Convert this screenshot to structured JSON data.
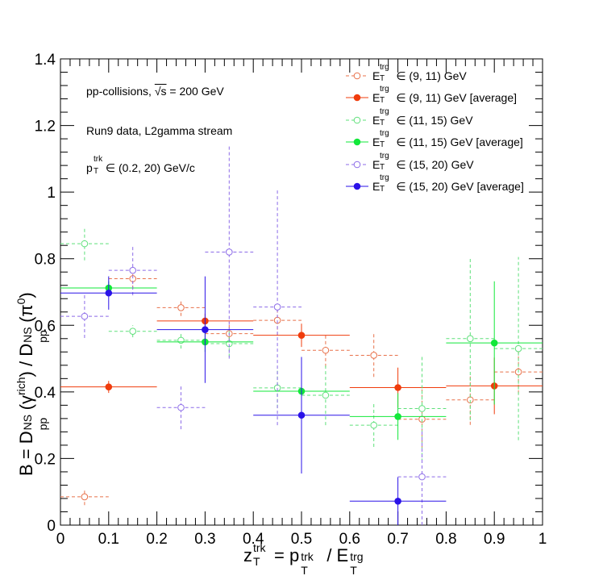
{
  "chart_data": {
    "type": "scatter",
    "xlabel": "z_T^trk = p_T^trk / E_T^trg",
    "ylabel": "B = D_pp^NS(γ^rich) / D_pp^NS(π^0)",
    "xlim": [
      0,
      1
    ],
    "ylim": [
      0,
      1.4
    ],
    "x_ticks": [
      "0",
      "0.1",
      "0.2",
      "0.3",
      "0.4",
      "0.5",
      "0.6",
      "0.7",
      "0.8",
      "0.9",
      "1"
    ],
    "y_ticks": [
      "0",
      "0.2",
      "0.4",
      "0.6",
      "0.8",
      "1",
      "1.2",
      "1.4"
    ],
    "grid": false,
    "legend_position": "top-right",
    "annotations": {
      "line1_prefix": "pp-collisions, ",
      "line1_sqrt": "√s",
      "line1_suffix": " = 200 GeV",
      "line2": "Run9 data, L2gamma stream",
      "line3_p": "p",
      "line3_sup": "trk",
      "line3_sub": "T",
      "line3_rest": " ∈ (0.2, 20) GeV/c"
    },
    "series": [
      {
        "name": "E_T^trg ∈ (9, 11) GeV",
        "legend_sup": "trg",
        "legend_rest": "∈ (9, 11) GeV",
        "color": "#e8714a",
        "style": "open-dashed",
        "points": [
          {
            "x": 0.05,
            "xerr": 0.05,
            "y": 0.085,
            "yerr": 0.025
          },
          {
            "x": 0.15,
            "xerr": 0.05,
            "y": 0.74,
            "yerr": 0.03
          },
          {
            "x": 0.25,
            "xerr": 0.05,
            "y": 0.653,
            "yerr": 0.025
          },
          {
            "x": 0.35,
            "xerr": 0.05,
            "y": 0.575,
            "yerr": 0.035
          },
          {
            "x": 0.45,
            "xerr": 0.05,
            "y": 0.615,
            "yerr": 0.045
          },
          {
            "x": 0.55,
            "xerr": 0.05,
            "y": 0.525,
            "yerr": 0.05
          },
          {
            "x": 0.65,
            "xerr": 0.05,
            "y": 0.51,
            "yerr": 0.065
          },
          {
            "x": 0.75,
            "xerr": 0.05,
            "y": 0.318,
            "yerr": 0.09
          },
          {
            "x": 0.85,
            "xerr": 0.05,
            "y": 0.376,
            "yerr": 0.075
          },
          {
            "x": 0.95,
            "xerr": 0.05,
            "y": 0.46,
            "yerr": 0.065
          }
        ]
      },
      {
        "name": "E_T^trg ∈ (9, 11) GeV [average]",
        "legend_sup": "trg",
        "legend_rest": "∈ (9, 11) GeV [average]",
        "color": "#f03c0c",
        "style": "filled-solid",
        "points": [
          {
            "x": 0.1,
            "xerr": 0.1,
            "y": 0.415,
            "yerr": 0.018
          },
          {
            "x": 0.3,
            "xerr": 0.1,
            "y": 0.613,
            "yerr": 0.022
          },
          {
            "x": 0.5,
            "xerr": 0.1,
            "y": 0.57,
            "yerr": 0.035
          },
          {
            "x": 0.7,
            "xerr": 0.1,
            "y": 0.413,
            "yerr": 0.06
          },
          {
            "x": 0.9,
            "xerr": 0.1,
            "y": 0.418,
            "yerr": 0.085
          }
        ]
      },
      {
        "name": "E_T^trg ∈ (11, 15) GeV",
        "legend_sup": "trg",
        "legend_rest": "∈ (11, 15) GeV",
        "color": "#5ee07a",
        "style": "open-dashed",
        "points": [
          {
            "x": 0.05,
            "xerr": 0.05,
            "y": 0.845,
            "yerr": 0.05
          },
          {
            "x": 0.15,
            "xerr": 0.05,
            "y": 0.582,
            "yerr": 0.018
          },
          {
            "x": 0.25,
            "xerr": 0.05,
            "y": 0.555,
            "yerr": 0.025
          },
          {
            "x": 0.35,
            "xerr": 0.05,
            "y": 0.545,
            "yerr": 0.04
          },
          {
            "x": 0.45,
            "xerr": 0.05,
            "y": 0.412,
            "yerr": 0.06
          },
          {
            "x": 0.55,
            "xerr": 0.05,
            "y": 0.39,
            "yerr": 0.09
          },
          {
            "x": 0.65,
            "xerr": 0.05,
            "y": 0.3,
            "yerr": 0.065
          },
          {
            "x": 0.75,
            "xerr": 0.05,
            "y": 0.35,
            "yerr": 0.16
          },
          {
            "x": 0.85,
            "xerr": 0.05,
            "y": 0.56,
            "yerr": 0.245
          },
          {
            "x": 0.95,
            "xerr": 0.05,
            "y": 0.53,
            "yerr": 0.275
          }
        ]
      },
      {
        "name": "E_T^trg ∈ (11, 15) GeV [average]",
        "legend_sup": "trg",
        "legend_rest": "∈ (11, 15) GeV [average]",
        "color": "#12e83a",
        "style": "filled-solid",
        "points": [
          {
            "x": 0.1,
            "xerr": 0.1,
            "y": 0.712,
            "yerr": 0.02
          },
          {
            "x": 0.3,
            "xerr": 0.1,
            "y": 0.55,
            "yerr": 0.03
          },
          {
            "x": 0.5,
            "xerr": 0.1,
            "y": 0.402,
            "yerr": 0.05
          },
          {
            "x": 0.7,
            "xerr": 0.1,
            "y": 0.326,
            "yerr": 0.07
          },
          {
            "x": 0.9,
            "xerr": 0.1,
            "y": 0.547,
            "yerr": 0.185
          }
        ]
      },
      {
        "name": "E_T^trg ∈ (15, 20) GeV",
        "legend_sup": "trg",
        "legend_rest": "∈ (15, 20) GeV",
        "color": "#8c6be8",
        "style": "open-dashed",
        "points": [
          {
            "x": 0.05,
            "xerr": 0.05,
            "y": 0.627,
            "yerr": 0.065
          },
          {
            "x": 0.15,
            "xerr": 0.05,
            "y": 0.765,
            "yerr": 0.075
          },
          {
            "x": 0.25,
            "xerr": 0.05,
            "y": 0.353,
            "yerr": 0.065
          },
          {
            "x": 0.35,
            "xerr": 0.05,
            "y": 0.82,
            "yerr": 0.32
          },
          {
            "x": 0.45,
            "xerr": 0.05,
            "y": 0.655,
            "yerr": 0.355
          },
          {
            "x": 0.75,
            "xerr": 0.05,
            "y": 0.145,
            "yerr": 0.145
          }
        ]
      },
      {
        "name": "E_T^trg ∈ (15, 20) GeV [average]",
        "legend_sup": "trg",
        "legend_rest": "∈ (15, 20) GeV [average]",
        "color": "#2a12e8",
        "style": "filled-solid",
        "points": [
          {
            "x": 0.1,
            "xerr": 0.1,
            "y": 0.697,
            "yerr": 0.05
          },
          {
            "x": 0.3,
            "xerr": 0.1,
            "y": 0.587,
            "yerr": 0.16
          },
          {
            "x": 0.5,
            "xerr": 0.1,
            "y": 0.33,
            "yerr": 0.175
          },
          {
            "x": 0.7,
            "xerr": 0.1,
            "y": 0.072,
            "yerr": 0.072
          }
        ]
      }
    ]
  }
}
